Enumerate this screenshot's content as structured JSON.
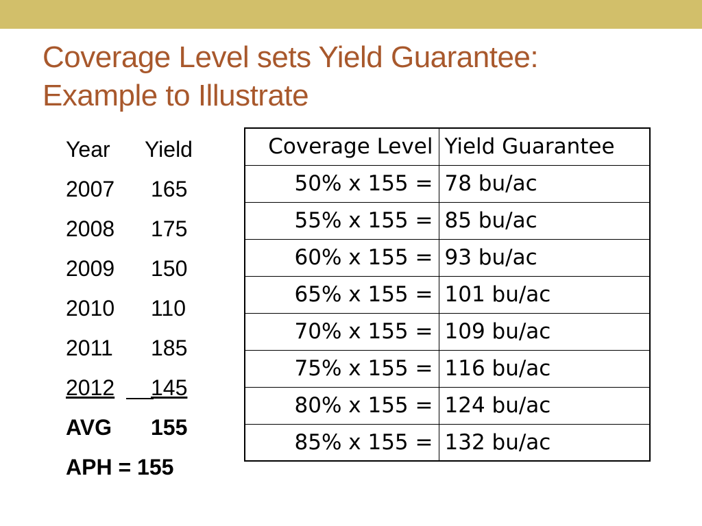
{
  "title": {
    "line1": "Coverage Level sets Yield Guarantee:",
    "line2": "Example to Illustrate"
  },
  "yield_list": {
    "header": {
      "year": "Year",
      "yield": "Yield"
    },
    "rows": [
      {
        "year": "2007",
        "yield": "165"
      },
      {
        "year": "2008",
        "yield": "175"
      },
      {
        "year": "2009",
        "yield": "150"
      },
      {
        "year": "2010",
        "yield": "110"
      },
      {
        "year": "2011",
        "yield": "185"
      },
      {
        "year": "2012",
        "yield": "145"
      }
    ],
    "avg": {
      "label": "AVG",
      "value": "155"
    },
    "aph": {
      "label": "APH",
      "equals": "= 155"
    }
  },
  "coverage_table": {
    "headers": [
      "Coverage Level",
      "Yield Guarantee"
    ],
    "rows": [
      {
        "level": "50% x 155 =",
        "guarantee": "78 bu/ac"
      },
      {
        "level": "55% x 155 =",
        "guarantee": "85 bu/ac"
      },
      {
        "level": "60% x 155 =",
        "guarantee": "93 bu/ac"
      },
      {
        "level": "65% x 155 =",
        "guarantee": "101 bu/ac"
      },
      {
        "level": "70% x 155 =",
        "guarantee": "109 bu/ac"
      },
      {
        "level": "75% x 155 =",
        "guarantee": "116 bu/ac"
      },
      {
        "level": "80% x 155 =",
        "guarantee": "124 bu/ac"
      },
      {
        "level": "85% x 155 =",
        "guarantee": "132 bu/ac"
      }
    ]
  },
  "colors": {
    "top_bar": "#d2bf6a",
    "title": "#a8582c"
  }
}
